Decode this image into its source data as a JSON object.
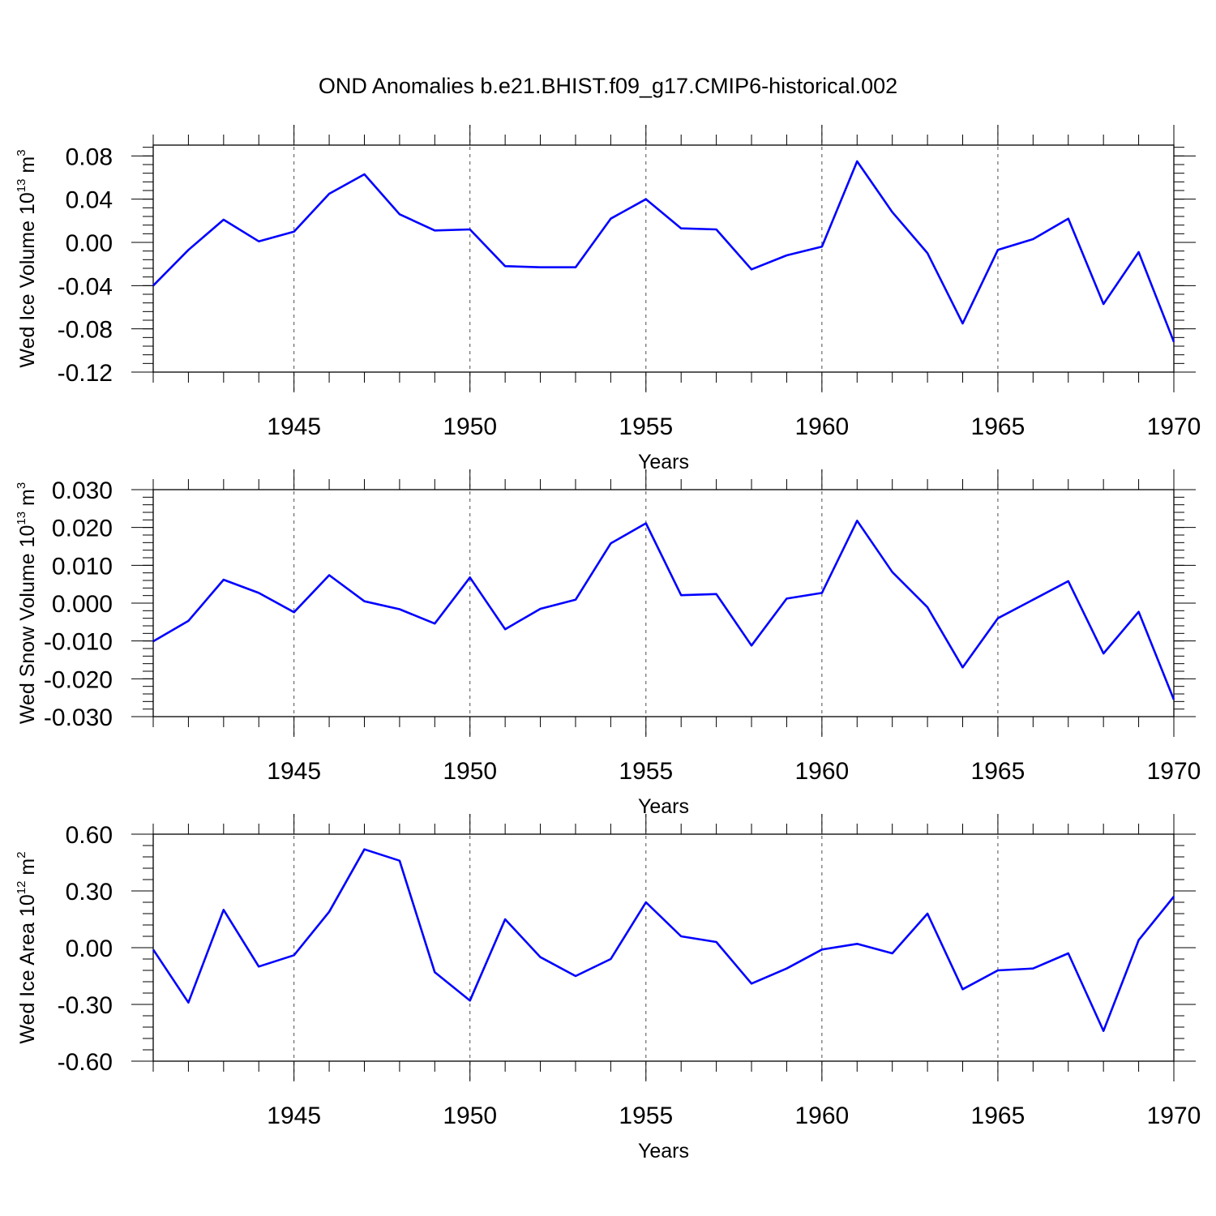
{
  "title": "OND Anomalies b.e21.BHIST.f09_g17.CMIP6-historical.002",
  "colors": {
    "line": "#0000ff",
    "axis": "#000000",
    "grid": "#000000"
  },
  "chart_data": [
    {
      "type": "line",
      "ylabel": {
        "text": "Wed Ice Volume 10",
        "exp": "13",
        "unit": " m",
        "unit_exp": "3"
      },
      "xlabel": "Years",
      "xlim": [
        1941,
        1970
      ],
      "ylim": [
        -0.12,
        0.09
      ],
      "yticks": [
        "-0.12",
        "-0.08",
        "-0.04",
        "0.00",
        "0.04",
        "0.08"
      ],
      "ytick_values": [
        -0.12,
        -0.08,
        -0.04,
        0.0,
        0.04,
        0.08
      ],
      "xticks": [
        "1945",
        "1950",
        "1955",
        "1960",
        "1965",
        "1970"
      ],
      "xtick_values": [
        1945,
        1950,
        1955,
        1960,
        1965,
        1970
      ],
      "x": [
        1941,
        1942,
        1943,
        1944,
        1945,
        1946,
        1947,
        1948,
        1949,
        1950,
        1951,
        1952,
        1953,
        1954,
        1955,
        1956,
        1957,
        1958,
        1959,
        1960,
        1961,
        1962,
        1963,
        1964,
        1965,
        1966,
        1967,
        1968,
        1969,
        1970
      ],
      "values": [
        -0.04,
        -0.007,
        0.021,
        0.001,
        0.01,
        0.045,
        0.063,
        0.026,
        0.011,
        0.012,
        -0.022,
        -0.023,
        -0.023,
        0.022,
        0.04,
        0.013,
        0.012,
        -0.025,
        -0.012,
        -0.004,
        0.075,
        0.028,
        -0.01,
        -0.075,
        -0.007,
        0.003,
        0.022,
        -0.057,
        -0.009,
        -0.092
      ],
      "vgrid": [
        1945,
        1950,
        1955,
        1960,
        1965
      ]
    },
    {
      "type": "line",
      "ylabel": {
        "text": "Wed Snow Volume 10",
        "exp": "13",
        "unit": " m",
        "unit_exp": "3"
      },
      "xlabel": "Years",
      "xlim": [
        1941,
        1970
      ],
      "ylim": [
        -0.03,
        0.03
      ],
      "yticks": [
        "-0.030",
        "-0.020",
        "-0.010",
        "0.000",
        "0.010",
        "0.020",
        "0.030"
      ],
      "ytick_values": [
        -0.03,
        -0.02,
        -0.01,
        0.0,
        0.01,
        0.02,
        0.03
      ],
      "xticks": [
        "1945",
        "1950",
        "1955",
        "1960",
        "1965",
        "1970"
      ],
      "xtick_values": [
        1945,
        1950,
        1955,
        1960,
        1965,
        1970
      ],
      "x": [
        1941,
        1942,
        1943,
        1944,
        1945,
        1946,
        1947,
        1948,
        1949,
        1950,
        1951,
        1952,
        1953,
        1954,
        1955,
        1956,
        1957,
        1958,
        1959,
        1960,
        1961,
        1962,
        1963,
        1964,
        1965,
        1966,
        1967,
        1968,
        1969,
        1970
      ],
      "values": [
        -0.0101,
        -0.0047,
        0.0062,
        0.0027,
        -0.0024,
        0.0074,
        0.0005,
        -0.0016,
        -0.0054,
        0.0068,
        -0.0069,
        -0.0015,
        0.0009,
        0.0158,
        0.0211,
        0.0021,
        0.0024,
        -0.0112,
        0.0012,
        0.0027,
        0.0218,
        0.0082,
        -0.0011,
        -0.017,
        -0.004,
        0.0009,
        0.0058,
        -0.0133,
        -0.0023,
        -0.0255
      ],
      "vgrid": [
        1945,
        1950,
        1955,
        1960,
        1965
      ]
    },
    {
      "type": "line",
      "ylabel": {
        "text": "Wed Ice Area 10",
        "exp": "12",
        "unit": " m",
        "unit_exp": "2"
      },
      "xlabel": "Years",
      "xlim": [
        1941,
        1970
      ],
      "ylim": [
        -0.6,
        0.6
      ],
      "yticks": [
        "-0.60",
        "-0.30",
        "0.00",
        "0.30",
        "0.60"
      ],
      "ytick_values": [
        -0.6,
        -0.3,
        0.0,
        0.3,
        0.6
      ],
      "xticks": [
        "1945",
        "1950",
        "1955",
        "1960",
        "1965",
        "1970"
      ],
      "xtick_values": [
        1945,
        1950,
        1955,
        1960,
        1965,
        1970
      ],
      "x": [
        1941,
        1942,
        1943,
        1944,
        1945,
        1946,
        1947,
        1948,
        1949,
        1950,
        1951,
        1952,
        1953,
        1954,
        1955,
        1956,
        1957,
        1958,
        1959,
        1960,
        1961,
        1962,
        1963,
        1964,
        1965,
        1966,
        1967,
        1968,
        1969,
        1970
      ],
      "values": [
        -0.01,
        -0.29,
        0.2,
        -0.1,
        -0.04,
        0.19,
        0.52,
        0.46,
        -0.13,
        -0.28,
        0.15,
        -0.05,
        -0.15,
        -0.06,
        0.24,
        0.06,
        0.03,
        -0.19,
        -0.11,
        -0.01,
        0.02,
        -0.03,
        0.18,
        -0.22,
        -0.12,
        -0.11,
        -0.03,
        -0.44,
        0.04,
        0.27
      ],
      "vgrid": [
        1945,
        1950,
        1955,
        1960,
        1965
      ]
    }
  ]
}
